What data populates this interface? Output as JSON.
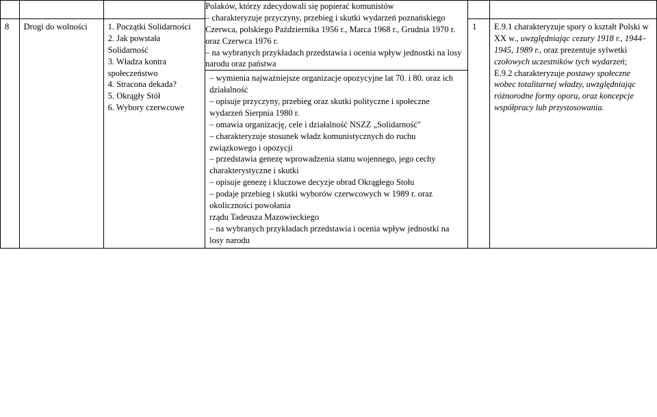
{
  "rows": {
    "spacer": {
      "c1": "",
      "c2": "",
      "c3": "",
      "c5": "",
      "c6": ""
    },
    "prevContent": "Polaków, którzy zdecydowali się popierać komunistów\n– charakteryzuje przyczyny, przebieg i skutki wydarzeń poznańskiego Czerwca, polskiego Października 1956 r., Marca 1968 r., Grudnia 1970 r. oraz Czerwca 1976 r.\n– na wybranych przykładach przedstawia i ocenia wpływ jednostki na losy narodu oraz państwa",
    "main": {
      "num": "8",
      "topic": "Drogi do wolności",
      "sub": "1. Początki Solidarności\n2. Jak powstała Solidarność\n3. Władza kontra społeczeństwo\n4. Stracona dekada?\n5. Okrągły Stół\n6. Wybory czerwcowe",
      "content": "– wymienia najważniejsze organizacje opozycyjne lat 70. i 80. oraz ich działalność\n– opisuje przyczyny, przebieg oraz skutki polityczne i społeczne wydarzeń Sierpnia 1980 r.\n– omawia organizację, cele i działalność NSZZ „Solidarność\"\n– charakteryzuje stosunek władz komunistycznych do ruchu związkowego i opozycji\n– przedstawia genezę wprowadzenia stanu wojennego, jego cechy charakterystyczne i skutki\n– opisuje genezę i kluczowe decyzje obrad Okrągłego Stołu\n– podaje przebieg i skutki wyborów czerwcowych w 1989 r. oraz okoliczności powołania\nrządu Tadeusza Mazowieckiego\n– na wybranych przykładach przedstawia i ocenia wpływ jednostki na losy narodu",
      "hours": "1",
      "std": {
        "a1": "E.9.1 charakteryzuje spory o kształt Polski w XX w., ",
        "a2": "uwzględniając cezury 1918 r., 1944–1945, 1989 r.",
        "a3": ", oraz prezentuje sylwetki ",
        "a4": "czołowych uczestników tych wydarzeń",
        "a5": ";",
        "b1": "E.9.2 charakteryzuje ",
        "b2": "postawy społeczne wobec totalitarnej władzy, uwzględniając różnorodne formy oporu, oraz koncepcje współpracy lub przystosowania."
      }
    }
  }
}
